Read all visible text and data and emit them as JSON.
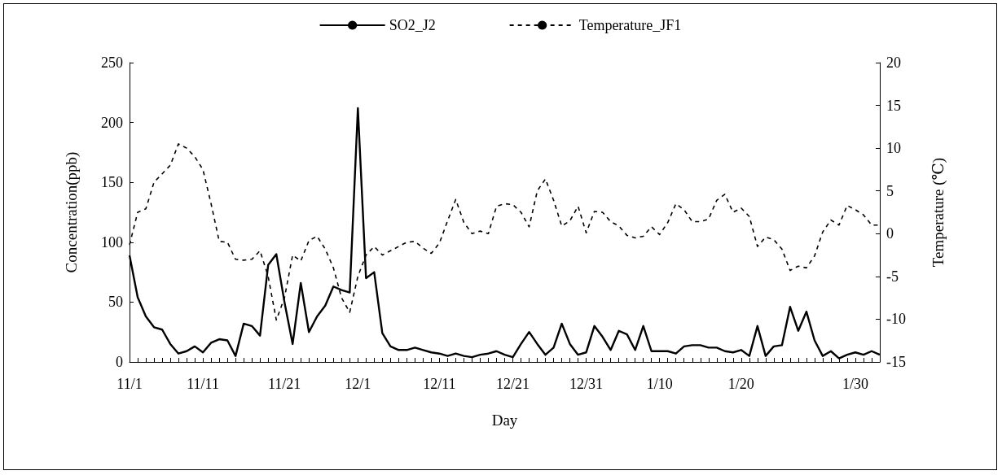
{
  "chart_data": {
    "type": "line",
    "xlabel": "Day",
    "ylabel": "Concentration(ppb)",
    "y2label": "Temperature (℃)",
    "categories": [
      "11/1",
      null,
      null,
      null,
      null,
      null,
      null,
      null,
      null,
      "11/11",
      null,
      null,
      null,
      null,
      null,
      null,
      null,
      null,
      null,
      "11/21",
      null,
      null,
      null,
      null,
      null,
      null,
      null,
      null,
      "12/1",
      null,
      null,
      null,
      null,
      null,
      null,
      null,
      null,
      null,
      "12/11",
      null,
      null,
      null,
      null,
      null,
      null,
      null,
      null,
      "12/21",
      null,
      null,
      null,
      null,
      null,
      null,
      null,
      null,
      "12/31",
      null,
      null,
      null,
      null,
      null,
      null,
      null,
      null,
      "1/10",
      null,
      null,
      null,
      null,
      null,
      null,
      null,
      null,
      null,
      "1/20",
      null,
      null,
      null,
      null,
      null,
      null,
      null,
      null,
      null,
      null,
      null,
      null,
      null,
      "1/30",
      null,
      null,
      null
    ],
    "series": [
      {
        "name": "SO2_J2",
        "color": "#000000",
        "line_style": "solid",
        "values": [
          89,
          54,
          38,
          29,
          27,
          15,
          7,
          9,
          13,
          8,
          16,
          19,
          18,
          5,
          32,
          30,
          22,
          81,
          90,
          50,
          15,
          66,
          25,
          38,
          47,
          63,
          60,
          58,
          212,
          70,
          75,
          24,
          13,
          10,
          10,
          12,
          10,
          8,
          7,
          5,
          7,
          5,
          4,
          6,
          7,
          9,
          6,
          4,
          15,
          25,
          15,
          6,
          12,
          32,
          15,
          6,
          8,
          30,
          21,
          10,
          26,
          23,
          10,
          30,
          9,
          9,
          9,
          7,
          13,
          14,
          14,
          12,
          12,
          9,
          8,
          10,
          5,
          30,
          5,
          13,
          14,
          46,
          26,
          42,
          18,
          5,
          9,
          3,
          6,
          8,
          6,
          9,
          6
        ]
      },
      {
        "name": "Temperature_JF1",
        "color": "#000000",
        "line_style": "dashed",
        "axis": "y2",
        "values": [
          -1.3,
          2.5,
          2.9,
          6,
          7,
          8,
          10.5,
          10,
          9,
          7.5,
          3.5,
          -0.9,
          -1,
          -3,
          -3.1,
          -3,
          -2,
          -5,
          -10.1,
          -7.5,
          -2.5,
          -3.2,
          -0.8,
          -0.3,
          -1.8,
          -4,
          -7.5,
          -9.2,
          -5,
          -2.5,
          -1.5,
          -2.5,
          -2,
          -1.5,
          -1,
          -0.9,
          -1.7,
          -2.3,
          -1.1,
          1.5,
          4,
          1.3,
          0,
          0.3,
          0,
          3.2,
          3.5,
          3.4,
          2.5,
          0.8,
          5,
          6.4,
          3.9,
          0.9,
          1.5,
          3.2,
          0.1,
          2.6,
          2.5,
          1.4,
          0.9,
          -0.2,
          -0.5,
          -0.3,
          0.8,
          -0.1,
          1.3,
          3.5,
          2.8,
          1.4,
          1.4,
          1.7,
          3.9,
          4.6,
          2.5,
          3,
          2,
          -1.5,
          -0.4,
          -0.7,
          -1.8,
          -4.3,
          -3.8,
          -4,
          -2.6,
          0.2,
          1.6,
          1,
          3.3,
          2.8,
          2.2,
          1,
          1
        ]
      }
    ],
    "ylim": [
      0,
      250
    ],
    "yticks": [
      0,
      50,
      100,
      150,
      200,
      250
    ],
    "y2lim": [
      -15,
      20
    ],
    "y2ticks": [
      -15,
      -10,
      -5,
      0,
      5,
      10,
      15,
      20
    ],
    "grid": false,
    "legend": "top",
    "marker": "none"
  }
}
